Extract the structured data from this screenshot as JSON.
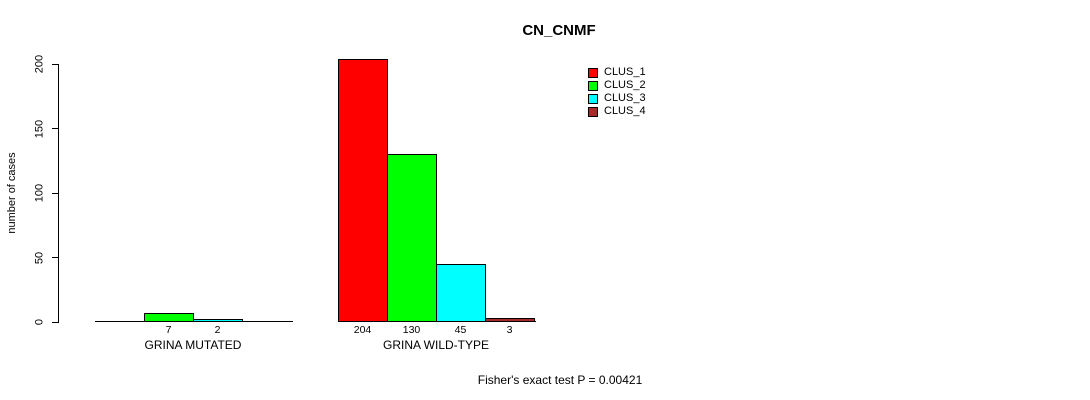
{
  "title": "CN_CNMF",
  "y_axis": {
    "label": "number of cases",
    "ticks": [
      "0",
      "50",
      "100",
      "150",
      "200"
    ]
  },
  "legend": {
    "items": [
      {
        "label": "CLUS_1",
        "color": "#FF0000"
      },
      {
        "label": "CLUS_2",
        "color": "#00FF00"
      },
      {
        "label": "CLUS_3",
        "color": "#00FFFF"
      },
      {
        "label": "CLUS_4",
        "color": "#A52A2A"
      }
    ]
  },
  "footer": {
    "text": "Fisher's exact test P = 0.00421"
  },
  "chart_data": {
    "type": "bar",
    "title": "CN_CNMF",
    "xlabel": "",
    "ylabel": "number of cases",
    "categories": [
      "GRINA MUTATED",
      "GRINA WILD-TYPE"
    ],
    "series": [
      {
        "name": "CLUS_1",
        "color": "#FF0000",
        "values": [
          0,
          204
        ]
      },
      {
        "name": "CLUS_2",
        "color": "#00FF00",
        "values": [
          7,
          130
        ]
      },
      {
        "name": "CLUS_3",
        "color": "#00FFFF",
        "values": [
          2,
          45
        ]
      },
      {
        "name": "CLUS_4",
        "color": "#A52A2A",
        "values": [
          0,
          3
        ]
      }
    ],
    "value_labels": "shown under each nonzero bar",
    "ylim": [
      0,
      204
    ],
    "y_ticks": [
      0,
      50,
      100,
      150,
      200
    ],
    "grid": false,
    "legend_position": "top-right",
    "annotation": "Fisher's exact test P = 0.00421"
  }
}
